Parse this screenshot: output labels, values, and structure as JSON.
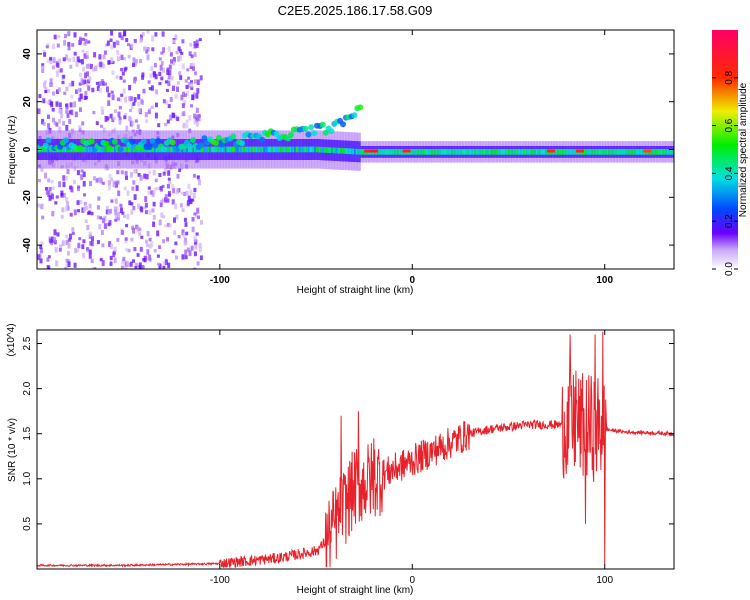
{
  "title": "C2E5.2025.186.17.58.G09",
  "chart_data": [
    {
      "type": "heatmap",
      "xlabel": "Height of straight line (km)",
      "ylabel": "Frequency (Hz)",
      "xlim": [
        -195,
        136
      ],
      "ylim": [
        -50,
        50
      ],
      "x_ticks": [
        -100,
        0,
        100
      ],
      "y_ticks": [
        -40,
        -20,
        0,
        20,
        40
      ],
      "colorbar": {
        "label": "Normalized spectral amplitude",
        "range": [
          0,
          1
        ],
        "ticks": [
          "0.0",
          "0.2",
          "0.4",
          "0.6",
          "0.8"
        ]
      },
      "features": [
        {
          "name": "scatter_noise",
          "x_range": [
            -195,
            -110
          ],
          "y_range": [
            -50,
            50
          ]
        },
        {
          "name": "band_upper_arc",
          "points": [
            [
              -195,
              2
            ],
            [
              -120,
              2
            ],
            [
              -80,
              5
            ],
            [
              -50,
              8
            ],
            [
              -35,
              11
            ],
            [
              -27,
              18
            ]
          ]
        },
        {
          "name": "band_main",
          "points": [
            [
              -195,
              0
            ],
            [
              -100,
              0
            ],
            [
              -50,
              0
            ],
            [
              -27,
              -1
            ],
            [
              0,
              -1
            ],
            [
              60,
              -1
            ],
            [
              100,
              -1
            ],
            [
              136,
              -1
            ]
          ]
        }
      ]
    },
    {
      "type": "line",
      "xlabel": "Height of straight line (km)",
      "ylabel": "SNR (10 * v/v)",
      "y_multiplier": "(x10^4)",
      "xlim": [
        -195,
        136
      ],
      "ylim": [
        0,
        2.65
      ],
      "x_ticks": [
        -100,
        0,
        100
      ],
      "y_ticks": [
        0.5,
        1.0,
        1.5,
        2.0,
        2.5
      ],
      "series": [
        {
          "color": "#e8222a",
          "envelope": [
            [
              -195,
              0.04
            ],
            [
              -150,
              0.04
            ],
            [
              -100,
              0.06
            ],
            [
              -70,
              0.12
            ],
            [
              -50,
              0.2
            ],
            [
              -45,
              0.3
            ],
            [
              -40,
              0.5
            ],
            [
              -35,
              0.7
            ],
            [
              -30,
              0.9
            ],
            [
              -20,
              1.0
            ],
            [
              -10,
              1.1
            ],
            [
              0,
              1.2
            ],
            [
              10,
              1.3
            ],
            [
              20,
              1.4
            ],
            [
              30,
              1.5
            ],
            [
              40,
              1.55
            ],
            [
              60,
              1.6
            ],
            [
              80,
              1.6
            ],
            [
              100,
              1.55
            ],
            [
              110,
              1.52
            ],
            [
              136,
              1.5
            ]
          ],
          "spikes": [
            [
              -37,
              1.7
            ],
            [
              -28,
              1.75
            ],
            [
              -20,
              1.45
            ],
            [
              -10,
              1.2
            ],
            [
              82,
              2.6
            ],
            [
              85,
              2.2
            ],
            [
              95,
              2.6
            ],
            [
              99,
              2.63
            ],
            [
              100,
              0.05
            ],
            [
              90,
              0.5
            ]
          ]
        }
      ]
    }
  ]
}
